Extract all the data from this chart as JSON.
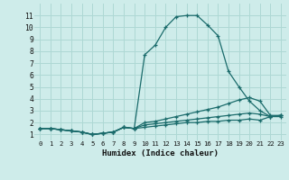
{
  "xlabel": "Humidex (Indice chaleur)",
  "bg_color": "#ceecea",
  "grid_color": "#aed8d4",
  "line_color": "#1a6b6b",
  "line1_x": [
    0,
    1,
    2,
    3,
    4,
    5,
    6,
    7,
    8,
    9,
    10,
    11,
    12,
    13,
    14,
    15,
    16,
    17,
    18,
    19,
    20,
    21,
    22,
    23
  ],
  "line1_y": [
    1.5,
    1.5,
    1.4,
    1.3,
    1.2,
    1.0,
    1.1,
    1.2,
    1.6,
    1.5,
    7.7,
    8.5,
    10.0,
    10.9,
    11.0,
    11.0,
    10.2,
    9.3,
    6.3,
    5.0,
    3.8,
    3.0,
    2.5,
    2.6
  ],
  "line2_x": [
    0,
    1,
    2,
    3,
    4,
    5,
    6,
    7,
    8,
    9,
    10,
    11,
    12,
    13,
    14,
    15,
    16,
    17,
    18,
    19,
    20,
    21,
    22,
    23
  ],
  "line2_y": [
    1.5,
    1.5,
    1.4,
    1.3,
    1.2,
    1.0,
    1.1,
    1.2,
    1.6,
    1.5,
    2.0,
    2.1,
    2.3,
    2.5,
    2.7,
    2.9,
    3.1,
    3.3,
    3.6,
    3.9,
    4.1,
    3.8,
    2.6,
    2.6
  ],
  "line3_x": [
    0,
    1,
    2,
    3,
    4,
    5,
    6,
    7,
    8,
    9,
    10,
    11,
    12,
    13,
    14,
    15,
    16,
    17,
    18,
    19,
    20,
    21,
    22,
    23
  ],
  "line3_y": [
    1.5,
    1.5,
    1.4,
    1.3,
    1.2,
    1.0,
    1.1,
    1.2,
    1.6,
    1.5,
    1.8,
    1.9,
    2.0,
    2.1,
    2.2,
    2.3,
    2.4,
    2.5,
    2.6,
    2.7,
    2.8,
    2.7,
    2.5,
    2.5
  ],
  "line4_x": [
    0,
    1,
    2,
    3,
    4,
    5,
    6,
    7,
    8,
    9,
    10,
    11,
    12,
    13,
    14,
    15,
    16,
    17,
    18,
    19,
    20,
    21,
    22,
    23
  ],
  "line4_y": [
    1.5,
    1.5,
    1.4,
    1.3,
    1.2,
    1.0,
    1.1,
    1.2,
    1.6,
    1.5,
    1.6,
    1.7,
    1.8,
    1.9,
    2.0,
    2.0,
    2.1,
    2.1,
    2.2,
    2.2,
    2.3,
    2.2,
    2.5,
    2.6
  ],
  "xlim": [
    -0.5,
    23.5
  ],
  "ylim": [
    0.5,
    12
  ],
  "xticks": [
    0,
    1,
    2,
    3,
    4,
    5,
    6,
    7,
    8,
    9,
    10,
    11,
    12,
    13,
    14,
    15,
    16,
    17,
    18,
    19,
    20,
    21,
    22,
    23
  ],
  "yticks": [
    1,
    2,
    3,
    4,
    5,
    6,
    7,
    8,
    9,
    10,
    11
  ]
}
